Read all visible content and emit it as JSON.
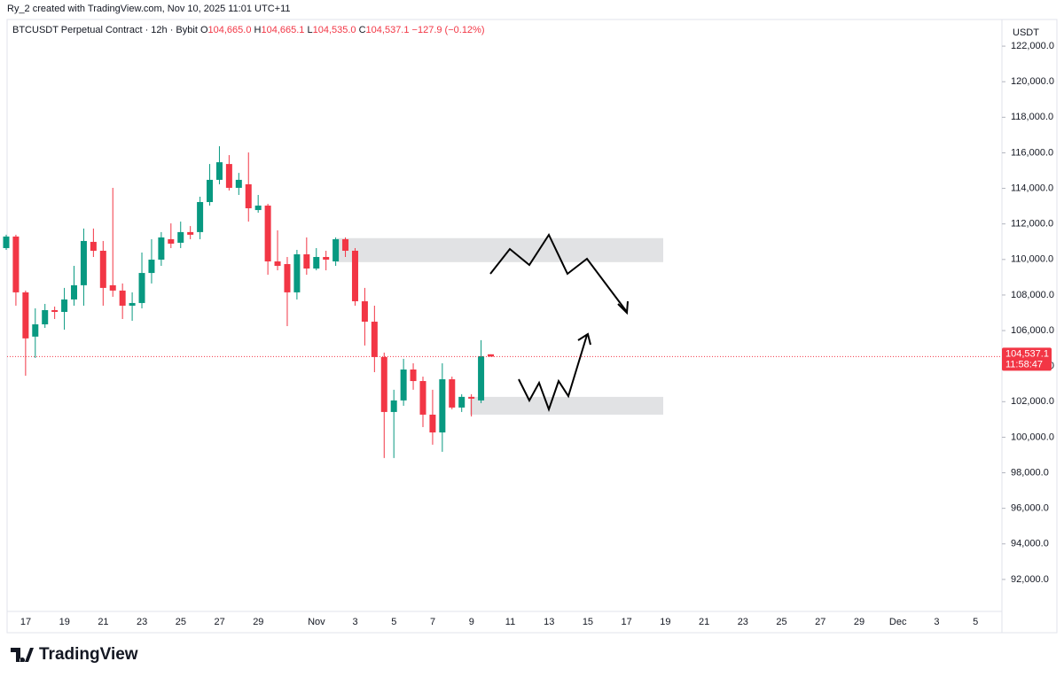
{
  "chart_data": {
    "type": "candlestick",
    "credit": "Ry_2 created with TradingView.com, Nov 10, 2025 11:01 UTC+11",
    "symbol": "BTCUSDT Perpetual Contract · 12h · Bybit",
    "ohlc_legend": [
      {
        "key": "O",
        "text": "104,665.0"
      },
      {
        "key": "H",
        "text": "104,665.1"
      },
      {
        "key": "L",
        "text": "104,535.0"
      },
      {
        "key": "C",
        "text": "104,537.1"
      }
    ],
    "change": "−127.9 (−0.12%)",
    "currency": "USDT",
    "last_price": 104537.1,
    "last_price_label": "104,537.1",
    "countdown": "11:58:47",
    "brand": "TradingView",
    "up_color": "#089981",
    "down_color": "#f23645",
    "open": [
      110640,
      111290,
      108150,
      105660,
      106350,
      107150,
      107050,
      107750,
      108550,
      110990,
      110490,
      108550,
      108250,
      107400,
      107550,
      109240,
      109990,
      111140,
      110940,
      111540,
      111540,
      113230,
      114480,
      115370,
      114030,
      114230,
      112780,
      113030,
      109890,
      109740,
      108150,
      110290,
      109490,
      110140,
      109890,
      111140,
      110490,
      107650,
      106500,
      104510,
      101420,
      102070,
      103810,
      103160,
      101270,
      100270,
      103260,
      101670,
      102270,
      102070,
      104665.0
    ],
    "high": [
      111390,
      111390,
      108250,
      107250,
      107500,
      107350,
      108400,
      109640,
      111740,
      111740,
      111040,
      114030,
      108650,
      108150,
      110390,
      111140,
      111540,
      112030,
      112130,
      111880,
      113530,
      115370,
      116370,
      115870,
      114870,
      116020,
      113630,
      113130,
      111640,
      110140,
      110540,
      111240,
      110640,
      110490,
      111240,
      111240,
      110640,
      108400,
      107400,
      104760,
      102670,
      104410,
      104160,
      103410,
      102670,
      104160,
      103410,
      102420,
      102420,
      105460,
      104665.1
    ],
    "low": [
      110540,
      107400,
      103460,
      104460,
      106150,
      106650,
      106050,
      107400,
      107400,
      110140,
      107400,
      107900,
      106650,
      106550,
      107250,
      108650,
      109640,
      110640,
      110640,
      111140,
      111140,
      113030,
      114230,
      113880,
      113630,
      112130,
      112630,
      109140,
      109390,
      106250,
      107750,
      109140,
      109390,
      109390,
      109640,
      110140,
      107400,
      105160,
      103660,
      98830,
      98830,
      101770,
      102670,
      100570,
      99580,
      99180,
      101570,
      101420,
      101170,
      101920,
      104535.0
    ],
    "close": [
      111290,
      108150,
      105560,
      106350,
      107150,
      107050,
      107750,
      108550,
      111040,
      110490,
      108400,
      108250,
      107400,
      107550,
      109240,
      109990,
      111240,
      110890,
      111540,
      111390,
      113230,
      114480,
      115470,
      114030,
      114480,
      112880,
      113030,
      109890,
      109640,
      108150,
      110290,
      109490,
      110140,
      109990,
      111140,
      110490,
      107650,
      106500,
      104510,
      101420,
      102070,
      103810,
      103160,
      101270,
      100270,
      103260,
      101670,
      102270,
      102170,
      104560,
      104537.1
    ],
    "zones": [
      {
        "top": 111200,
        "bottom": 109850
      },
      {
        "top": 102270,
        "bottom": 101270
      }
    ],
    "ylim": [
      90200,
      123500
    ],
    "yticks": [
      {
        "value": 92000,
        "label": "92,000.0"
      },
      {
        "value": 94000,
        "label": "94,000.0"
      },
      {
        "value": 96000,
        "label": "96,000.0"
      },
      {
        "value": 98000,
        "label": "98,000.0"
      },
      {
        "value": 100000,
        "label": "100,000.0"
      },
      {
        "value": 102000,
        "label": "102,000.0"
      },
      {
        "value": 104000,
        "label": "104,000.0"
      },
      {
        "value": 106000,
        "label": "106,000.0"
      },
      {
        "value": 108000,
        "label": "108,000.0"
      },
      {
        "value": 110000,
        "label": "110,000.0"
      },
      {
        "value": 112000,
        "label": "112,000.0"
      },
      {
        "value": 114000,
        "label": "114,000.0"
      },
      {
        "value": 116000,
        "label": "116,000.0"
      },
      {
        "value": 118000,
        "label": "118,000.0"
      },
      {
        "value": 120000,
        "label": "120,000.0"
      },
      {
        "value": 122000,
        "label": "122,000.0"
      }
    ],
    "x_tick_labels": [
      "17",
      "19",
      "21",
      "23",
      "25",
      "27",
      "29",
      "Nov",
      "3",
      "5",
      "7",
      "9",
      "11",
      "13",
      "15",
      "17",
      "19",
      "21",
      "23",
      "25",
      "27",
      "29",
      "Dec",
      "3",
      "5"
    ]
  }
}
